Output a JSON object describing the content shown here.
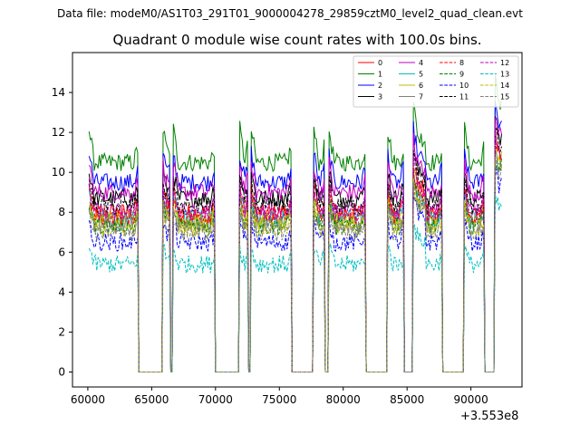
{
  "figure": {
    "suptitle": "Data file: modeM0/AS1T03_291T01_9000004278_29859cztM0_level2_quad_clean.evt",
    "offset_label": "+3.553e8"
  },
  "chart_data": {
    "type": "line",
    "title": "Quadrant 0 module wise count rates with 100.0s bins.",
    "xlabel": "",
    "ylabel": "",
    "xlim": [
      58800,
      94000
    ],
    "ylim": [
      -0.75,
      16.0
    ],
    "xticks": [
      60000,
      65000,
      70000,
      75000,
      80000,
      85000,
      90000
    ],
    "xtick_labels": [
      "60000",
      "65000",
      "70000",
      "75000",
      "80000",
      "85000",
      "90000"
    ],
    "yticks": [
      0,
      2,
      4,
      6,
      8,
      10,
      12,
      14
    ],
    "ytick_labels": [
      "0",
      "2",
      "4",
      "6",
      "8",
      "10",
      "12",
      "14"
    ],
    "x_offset": 355300000,
    "bin_width_s": 100,
    "legend_position": "top-right",
    "legend_columns": 4,
    "on_intervals": [
      [
        60100,
        63900
      ],
      [
        65900,
        66400
      ],
      [
        66700,
        69900
      ],
      [
        71900,
        72500
      ],
      [
        72800,
        75900
      ],
      [
        77700,
        78500
      ],
      [
        78900,
        81700
      ],
      [
        83500,
        84700
      ],
      [
        85500,
        87700
      ],
      [
        89500,
        91000
      ],
      [
        91900,
        92400
      ]
    ],
    "series": [
      {
        "name": "0",
        "color": "#ff0000",
        "dash": "solid",
        "level": 8.0
      },
      {
        "name": "1",
        "color": "#008000",
        "dash": "solid",
        "level": 10.5
      },
      {
        "name": "2",
        "color": "#0000ff",
        "dash": "solid",
        "level": 9.5
      },
      {
        "name": "3",
        "color": "#000000",
        "dash": "solid",
        "level": 8.7
      },
      {
        "name": "4",
        "color": "#bf00bf",
        "dash": "solid",
        "level": 9.0
      },
      {
        "name": "5",
        "color": "#00bfbf",
        "dash": "solid",
        "level": 7.7
      },
      {
        "name": "6",
        "color": "#bfbf00",
        "dash": "solid",
        "level": 7.6
      },
      {
        "name": "7",
        "color": "#808080",
        "dash": "solid",
        "level": 7.4
      },
      {
        "name": "8",
        "color": "#ff0000",
        "dash": "dashed",
        "level": 7.8
      },
      {
        "name": "9",
        "color": "#008000",
        "dash": "dashed",
        "level": 7.3
      },
      {
        "name": "10",
        "color": "#0000ff",
        "dash": "dashed",
        "level": 6.5
      },
      {
        "name": "11",
        "color": "#000000",
        "dash": "dashed",
        "level": 8.3
      },
      {
        "name": "12",
        "color": "#bf00bf",
        "dash": "dashed",
        "level": 8.0
      },
      {
        "name": "13",
        "color": "#00bfbf",
        "dash": "dashed",
        "level": 5.4
      },
      {
        "name": "14",
        "color": "#bfbf00",
        "dash": "dashed",
        "level": 7.2
      },
      {
        "name": "15",
        "color": "#808080",
        "dash": "dashed",
        "level": 7.0
      }
    ]
  }
}
